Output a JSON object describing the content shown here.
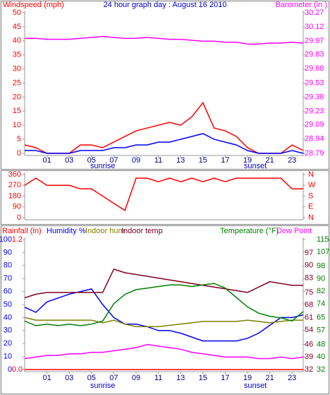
{
  "chart_data": [
    {
      "type": "line",
      "title": "24 hour graph day : August 16 2010",
      "ylabel": "Windspeed (mph)",
      "y2label": "Barometer (in.)",
      "x": [
        -1,
        0,
        1,
        2,
        3,
        4,
        5,
        6,
        7,
        8,
        9,
        10,
        11,
        12,
        13,
        14,
        15,
        16,
        17,
        18,
        19,
        20,
        21,
        22,
        23,
        24
      ],
      "xlim": [
        -1,
        24
      ],
      "xticks": [
        {
          "value": 1,
          "label": "01"
        },
        {
          "value": 3,
          "label": "03"
        },
        {
          "value": 5,
          "label": "05"
        },
        {
          "value": 7,
          "label": "07"
        },
        {
          "value": 9,
          "label": "09"
        },
        {
          "value": 11,
          "label": "11"
        },
        {
          "value": 13,
          "label": "13"
        },
        {
          "value": 15,
          "label": "15"
        },
        {
          "value": 17,
          "label": "17"
        },
        {
          "value": 19,
          "label": "19"
        },
        {
          "value": 21,
          "label": "21"
        },
        {
          "value": 23,
          "label": "23"
        }
      ],
      "ylim": [
        0,
        50
      ],
      "yticks": [
        0,
        5,
        10,
        15,
        20,
        25,
        30,
        35,
        40,
        45,
        50
      ],
      "y2lim": [
        28.79,
        30.27
      ],
      "y2ticks": [
        28.79,
        28.94,
        29.09,
        29.23,
        29.38,
        29.53,
        29.68,
        29.83,
        29.97,
        30.12,
        30.27
      ],
      "annotations": [
        {
          "text": "sunrise",
          "x": 6
        },
        {
          "text": "sunset",
          "x": 19.7
        }
      ],
      "series": [
        {
          "color": "#ff0000",
          "values": [
            3,
            2,
            0,
            0,
            0,
            3,
            3,
            2,
            4,
            6,
            8,
            9,
            10,
            11,
            10,
            13,
            18,
            9,
            8,
            6,
            2,
            0,
            0,
            0,
            3,
            1
          ]
        },
        {
          "color": "#0000ff",
          "values": [
            1,
            1,
            0,
            0,
            0,
            1,
            1,
            1,
            2,
            2,
            3,
            3,
            4,
            4,
            5,
            6,
            7,
            5,
            4,
            3,
            1,
            0,
            0,
            0,
            1,
            0
          ]
        },
        {
          "color": "#ff00ff",
          "axis": "y2",
          "values": [
            30.0,
            30.0,
            29.99,
            29.99,
            29.99,
            30.0,
            30.01,
            30.02,
            30.01,
            30.0,
            30.0,
            30.01,
            30.0,
            29.99,
            29.99,
            29.98,
            29.97,
            29.97,
            29.96,
            29.96,
            29.94,
            29.94,
            29.95,
            29.95,
            29.96,
            29.95
          ]
        }
      ]
    },
    {
      "type": "line",
      "x": [
        -1,
        0,
        1,
        2,
        3,
        4,
        5,
        6,
        7,
        8,
        9,
        10,
        11,
        12,
        13,
        14,
        15,
        16,
        17,
        18,
        19,
        20,
        21,
        22,
        23,
        24
      ],
      "xlim": [
        -1,
        24
      ],
      "ylim": [
        0,
        360
      ],
      "yticks": [
        0,
        90,
        180,
        270,
        360
      ],
      "y2lim": [
        0,
        360
      ],
      "y2ticks": [
        {
          "value": 0,
          "label": "N"
        },
        {
          "value": 90,
          "label": "E"
        },
        {
          "value": 180,
          "label": "S"
        },
        {
          "value": 270,
          "label": "W"
        },
        {
          "value": 360,
          "label": "N"
        }
      ],
      "series": [
        {
          "color": "#ff0000",
          "values": [
            270,
            330,
            270,
            270,
            270,
            240,
            240,
            180,
            120,
            60,
            330,
            330,
            300,
            330,
            300,
            330,
            300,
            330,
            300,
            330,
            330,
            330,
            330,
            330,
            240,
            240
          ]
        }
      ]
    },
    {
      "type": "line",
      "x": [
        -1,
        0,
        1,
        2,
        3,
        4,
        5,
        6,
        7,
        8,
        9,
        10,
        11,
        12,
        13,
        14,
        15,
        16,
        17,
        18,
        19,
        20,
        21,
        22,
        23,
        24
      ],
      "xlim": [
        -1,
        24
      ],
      "xticks": [
        {
          "value": 1,
          "label": "01"
        },
        {
          "value": 3,
          "label": "03"
        },
        {
          "value": 5,
          "label": "05"
        },
        {
          "value": 7,
          "label": "07"
        },
        {
          "value": 9,
          "label": "09"
        },
        {
          "value": 11,
          "label": "11"
        },
        {
          "value": 13,
          "label": "13"
        },
        {
          "value": 15,
          "label": "15"
        },
        {
          "value": 17,
          "label": "17"
        },
        {
          "value": 19,
          "label": "19"
        },
        {
          "value": 21,
          "label": "21"
        },
        {
          "value": 23,
          "label": "23"
        }
      ],
      "ylim": [
        0,
        100
      ],
      "yticks": [
        0,
        10,
        20,
        30,
        40,
        50,
        60,
        70,
        80,
        90,
        100
      ],
      "y3lim": [
        0,
        1.2
      ],
      "y3ticks": [
        {
          "value": 0,
          "label": "0.0"
        },
        1.2
      ],
      "y2lim": [
        32,
        115
      ],
      "y2ticks": [
        32,
        40,
        48,
        57,
        65,
        74,
        82,
        90,
        98,
        107,
        115
      ],
      "y4lim": [
        32,
        104.5
      ],
      "y4ticks": [
        32,
        39,
        46,
        54,
        61,
        68,
        75,
        83,
        90,
        97
      ],
      "annotations": [
        {
          "text": "sunrise",
          "x": 6
        },
        {
          "text": "sunset",
          "x": 19.7
        }
      ],
      "series": [
        {
          "name": "Rainfall (in)",
          "color": "#ff0000",
          "axis": "y3",
          "values": [
            0,
            0,
            0,
            0,
            0,
            0,
            0,
            0,
            0,
            0,
            0,
            0,
            0,
            0,
            0,
            0,
            0,
            0,
            0,
            0,
            0,
            0,
            0,
            0,
            0,
            0
          ]
        },
        {
          "name": "Humidity %",
          "color": "#0000ff",
          "values": [
            48,
            44,
            52,
            55,
            58,
            60,
            62,
            50,
            40,
            35,
            35,
            33,
            30,
            30,
            28,
            25,
            22,
            22,
            22,
            22,
            24,
            28,
            34,
            40,
            40,
            42
          ]
        },
        {
          "name": "Indoor hum",
          "color": "#808000",
          "values": [
            40,
            38,
            38,
            38,
            38,
            38,
            38,
            36,
            38,
            35,
            33,
            33,
            33,
            34,
            35,
            36,
            37,
            37,
            37,
            37,
            38,
            37,
            36,
            37,
            38,
            38
          ]
        },
        {
          "name": "Indoor temp",
          "color": "#800020",
          "axis": "y4",
          "values": [
            72,
            74,
            75,
            75,
            75,
            75,
            75,
            75,
            88,
            86,
            85,
            84,
            83,
            82,
            81,
            80,
            79,
            78,
            77,
            76,
            75,
            78,
            81,
            80,
            79,
            79
          ]
        },
        {
          "name": "Temperature (°F)",
          "color": "#008000",
          "axis": "y2",
          "values": [
            63,
            60,
            61,
            60,
            61,
            60,
            61,
            63,
            74,
            80,
            83,
            84,
            85,
            86,
            86,
            85,
            86,
            87,
            84,
            78,
            72,
            68,
            66,
            65,
            63,
            69
          ]
        },
        {
          "name": "Dew Point",
          "color": "#ff00ff",
          "axis": "y2",
          "values": [
            39,
            40,
            41,
            41,
            42,
            42,
            43,
            43,
            44,
            45,
            46,
            48,
            47,
            46,
            45,
            43,
            42,
            41,
            40,
            40,
            40,
            39,
            39,
            40,
            39,
            40
          ]
        }
      ]
    }
  ]
}
